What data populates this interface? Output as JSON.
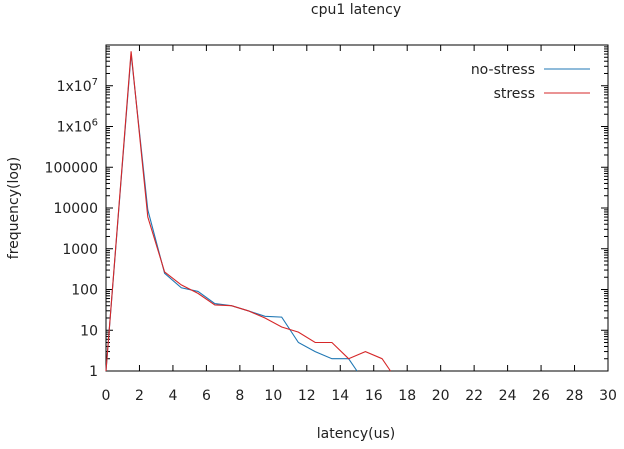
{
  "chart_data": {
    "type": "line",
    "title": "cpu1 latency",
    "xlabel": "latency(us)",
    "ylabel": "frequency(log)",
    "xlim": [
      0,
      30
    ],
    "ylim": [
      1,
      100000000
    ],
    "y_scale": "log",
    "grid": false,
    "legend_position": "top-right",
    "x_ticks": [
      0,
      2,
      4,
      6,
      8,
      10,
      12,
      14,
      16,
      18,
      20,
      22,
      24,
      26,
      28,
      30
    ],
    "y_ticks": [
      {
        "value": 1,
        "label": "1"
      },
      {
        "value": 10,
        "label": "10"
      },
      {
        "value": 100,
        "label": "100"
      },
      {
        "value": 1000,
        "label": "1000"
      },
      {
        "value": 10000,
        "label": "10000"
      },
      {
        "value": 100000,
        "label": "100000"
      },
      {
        "value": 1000000,
        "label": "1x10^6"
      },
      {
        "value": 10000000,
        "label": "1x10^7"
      }
    ],
    "series": [
      {
        "name": "no-stress",
        "color": "#1f77b4",
        "x": [
          0,
          1.5,
          2.5,
          3.5,
          4.5,
          5.5,
          6.5,
          7.5,
          8.5,
          9.5,
          10.5,
          11.5,
          12.5,
          13.5,
          14.5,
          15.0
        ],
        "y": [
          1,
          60000000,
          9000,
          250,
          110,
          90,
          45,
          40,
          30,
          22,
          21,
          5,
          3,
          2,
          2,
          1
        ]
      },
      {
        "name": "stress",
        "color": "#d62728",
        "x": [
          0,
          1.5,
          2.5,
          3.5,
          4.5,
          5.5,
          6.5,
          7.5,
          8.5,
          9.5,
          10.5,
          11.5,
          12.5,
          13.5,
          14.5,
          15.5,
          16.5,
          17.0
        ],
        "y": [
          1,
          70000000,
          6000,
          270,
          130,
          80,
          42,
          40,
          30,
          20,
          12,
          9,
          5,
          5,
          2,
          3,
          2,
          1
        ]
      }
    ]
  }
}
